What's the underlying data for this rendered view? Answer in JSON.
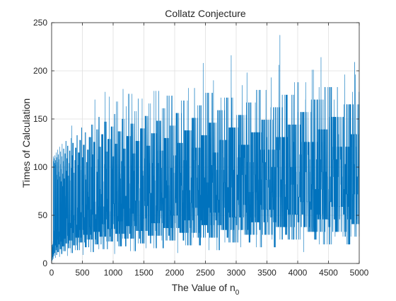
{
  "chart_data": {
    "type": "line",
    "title": "Collatz Conjecture",
    "xlabel_main": "The Value of n",
    "xlabel_sub": "0",
    "ylabel": "Times of Calculation",
    "xlim": [
      0,
      5000
    ],
    "ylim": [
      0,
      250
    ],
    "xticks": [
      0,
      500,
      1000,
      1500,
      2000,
      2500,
      3000,
      3500,
      4000,
      4500,
      5000
    ],
    "yticks": [
      0,
      50,
      100,
      150,
      200,
      250
    ],
    "grid": true,
    "legend": "none",
    "series": [
      {
        "color": "#0072bd",
        "x_start": 1,
        "x_end": 5000,
        "description_values": "total stopping time of the Collatz sequence for each starting value n0 = 1..5000"
      }
    ]
  },
  "colors": {
    "line": "#0072bd",
    "grid": "#dfdfdf",
    "axis": "#262626",
    "background": "#ffffff"
  }
}
